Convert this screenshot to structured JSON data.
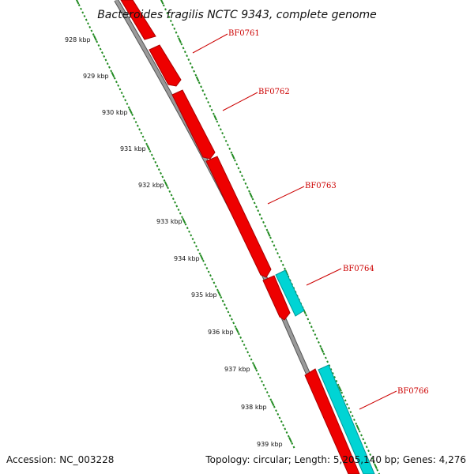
{
  "title": "Bacteroides fragilis NCTC 9343, complete genome",
  "accession": "Accession: NC_003228",
  "summary": "Topology: circular; Length: 5,205,140 bp; Genes: 4,276",
  "colors": {
    "forward_gene": "#ff0000",
    "reverse_gene": "#00d4d4",
    "backbone": "#8c8c8c",
    "scale_ticks": "#228b22",
    "gene_label": "#cc0000"
  },
  "scale_labels": [
    "928 kbp",
    "929 kbp",
    "930 kbp",
    "931 kbp",
    "932 kbp",
    "933 kbp",
    "934 kbp",
    "935 kbp",
    "936 kbp",
    "937 kbp",
    "938 kbp",
    "939 kbp"
  ],
  "genes": [
    {
      "name": "BF0761",
      "strand": "forward"
    },
    {
      "name": "BF0762",
      "strand": "forward"
    },
    {
      "name": "BF0763",
      "strand": "forward"
    },
    {
      "name": "BF0764",
      "strand": "reverse"
    },
    {
      "name": "BF0766",
      "strand": "reverse"
    }
  ]
}
